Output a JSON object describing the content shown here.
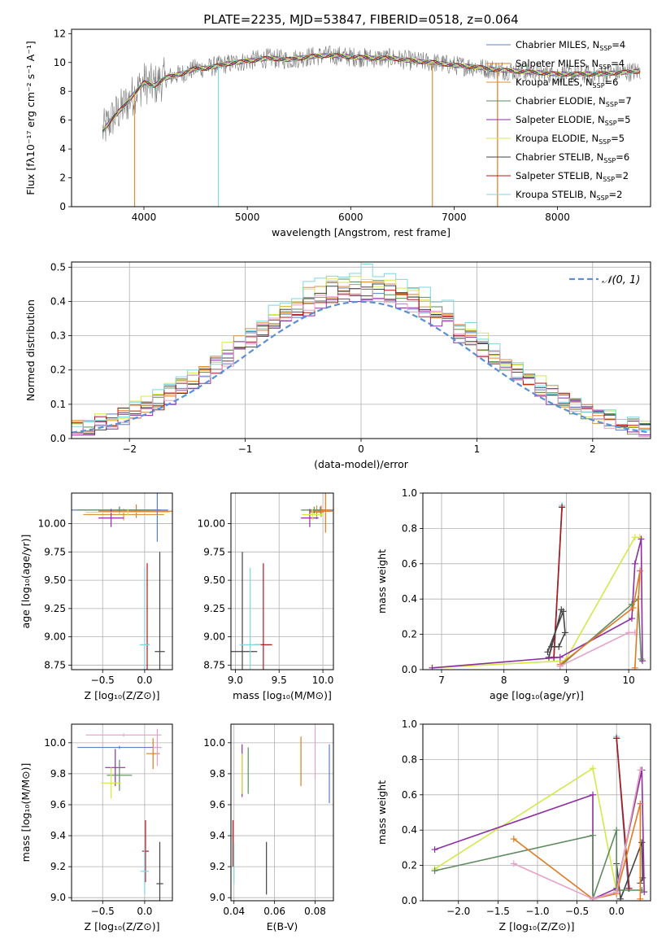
{
  "figure": {
    "title": "PLATE=2235, MJD=53847, FIBERID=0518, z=0.064"
  },
  "colors": {
    "chabrier_miles": "#5b7fc4",
    "salpeter_miles": "#e07a22",
    "kroupa_miles": "#d8913a",
    "chabrier_elodie": "#5f8a5f",
    "salpeter_elodie": "#8e2ea3",
    "kroupa_elodie": "#d4e84a",
    "chabrier_stelib": "#444444",
    "salpeter_stelib": "#b01818",
    "kroupa_stelib": "#7fd6e0"
  },
  "legend_spectrum": [
    {
      "text": "Chabrier MILES, N",
      "sub": "SSP",
      "tail": "=4",
      "color": "#5b7fc4"
    },
    {
      "text": "Salpeter MILES, N",
      "sub": "SSP",
      "tail": "=4",
      "color": "#e07a22"
    },
    {
      "text": "Kroupa MILES, N",
      "sub": "SSP",
      "tail": "=6",
      "color": "#d8913a"
    },
    {
      "text": "Chabrier ELODIE, N",
      "sub": "SSP",
      "tail": "=7",
      "color": "#5f8a5f"
    },
    {
      "text": "Salpeter ELODIE, N",
      "sub": "SSP",
      "tail": "=5",
      "color": "#8e2ea3"
    },
    {
      "text": "Kroupa ELODIE, N",
      "sub": "SSP",
      "tail": "=5",
      "color": "#d4e84a"
    },
    {
      "text": "Chabrier STELIB, N",
      "sub": "SSP",
      "tail": "=6",
      "color": "#444444"
    },
    {
      "text": "Salpeter STELIB, N",
      "sub": "SSP",
      "tail": "=2",
      "color": "#b01818"
    },
    {
      "text": "Kroupa STELIB, N",
      "sub": "SSP",
      "tail": "=2",
      "color": "#7fd6e0"
    }
  ],
  "chart_data": [
    {
      "id": "spectrum",
      "type": "line",
      "xlabel": "wavelength [Angstrom, rest frame]",
      "ylabel": "Flux [fλ10⁻¹⁷ erg cm⁻² s⁻¹ A⁻¹]",
      "xlim": [
        3300,
        8900
      ],
      "ylim": [
        0,
        12.3
      ],
      "xticks": [
        4000,
        5000,
        6000,
        7000,
        8000
      ],
      "yticks": [
        0,
        2,
        4,
        6,
        8,
        10,
        12
      ],
      "data_continuum": {
        "x": [
          3600,
          3700,
          3800,
          3900,
          4000,
          4100,
          4200,
          4300,
          4400,
          4500,
          4600,
          4800,
          5000,
          5200,
          5400,
          5600,
          5800,
          6000,
          6200,
          6400,
          6600,
          6800,
          7000,
          7200,
          7400,
          7600,
          7800,
          8000,
          8200,
          8400,
          8600,
          8800
        ],
        "y": [
          5.2,
          6.2,
          6.9,
          7.8,
          8.6,
          8.4,
          8.9,
          9.1,
          9.3,
          9.6,
          9.6,
          9.9,
          10.1,
          10.3,
          10.2,
          10.4,
          10.5,
          10.4,
          10.3,
          10.3,
          10.1,
          10.0,
          9.8,
          9.7,
          9.5,
          9.4,
          9.3,
          9.2,
          9.2,
          9.2,
          9.3,
          9.4
        ]
      },
      "model_gaps": [
        [
          3910,
          "#d8913a"
        ],
        [
          4720,
          "#7fd6e0"
        ],
        [
          6790,
          "#d8913a"
        ],
        [
          7420,
          "#e07a22"
        ]
      ],
      "legend": "right"
    },
    {
      "id": "residuals",
      "type": "histogram",
      "xlabel": "(data-model)/error",
      "ylabel": "Normed distribution",
      "xlim": [
        -2.5,
        2.5
      ],
      "ylim": [
        0,
        0.515
      ],
      "xticks": [
        -2,
        -1,
        0,
        1,
        2
      ],
      "yticks": [
        0,
        0.1,
        0.2,
        0.3,
        0.4,
        0.5
      ],
      "bin_width": 0.1,
      "series_peak": [
        0.43,
        0.44,
        0.46,
        0.45,
        0.42,
        0.47,
        0.44,
        0.43,
        0.49
      ],
      "normal_label": "𝒩(0, 1)",
      "grid": true,
      "legend": "top-right"
    },
    {
      "id": "age_vs_Z",
      "type": "errorbar",
      "xlabel": "Z [log₁₀(Z/Z⊙)]",
      "ylabel": "age  [log₁₀(age/yr)]",
      "xlim": [
        -0.87,
        0.33
      ],
      "ylim": [
        8.71,
        10.27
      ],
      "xticks": [
        -0.5,
        0.0
      ],
      "yticks": [
        8.75,
        9.0,
        9.25,
        9.5,
        9.75,
        10.0
      ],
      "points": [
        {
          "x": -0.3,
          "xe": 0.58,
          "y": 10.12,
          "ye": 0.03,
          "c": "#5b7fc4"
        },
        {
          "x": -0.1,
          "xe": 0.45,
          "y": 10.11,
          "ye": 0.06,
          "c": "#e07a22"
        },
        {
          "x": -0.25,
          "xe": 0.48,
          "y": 10.08,
          "ye": 0.05,
          "c": "#d8913a"
        },
        {
          "x": -0.3,
          "xe": 0.5,
          "y": 10.12,
          "ye": 0.03,
          "c": "#5f8a5f"
        },
        {
          "x": -0.4,
          "xe": 0.15,
          "y": 10.05,
          "ye": 0.08,
          "c": "#8e2ea3"
        },
        {
          "x": -0.2,
          "xe": 0.5,
          "y": 10.1,
          "ye": 0.03,
          "c": "#d4e84a"
        },
        {
          "x": 0.18,
          "xe": 0.06,
          "y": 8.87,
          "ye": 0.88,
          "c": "#444444"
        },
        {
          "x": 0.03,
          "xe": 0.03,
          "y": 8.93,
          "ye": 0.72,
          "c": "#b01818"
        },
        {
          "x": 0.0,
          "xe": 0.06,
          "y": 8.93,
          "ye": 0.68,
          "c": "#7fd6e0"
        },
        {
          "x": 0.15,
          "xe": 0.05,
          "y": 10.12,
          "ye": 0.28,
          "c": "#5b7fc4"
        }
      ]
    },
    {
      "id": "age_vs_mass",
      "type": "errorbar",
      "xlabel": "mass [log₁₀(M/M⊙)]",
      "ylabel": "",
      "xlim": [
        8.95,
        10.12
      ],
      "ylim": [
        8.71,
        10.27
      ],
      "xticks": [
        9.0,
        9.5,
        10.0
      ],
      "yticks": [
        8.75,
        9.0,
        9.25,
        9.5,
        9.75,
        10.0
      ],
      "points": [
        {
          "x": 9.97,
          "xe": 0.15,
          "y": 10.12,
          "ye": 0.03,
          "c": "#5b7fc4"
        },
        {
          "x": 9.98,
          "xe": 0.13,
          "y": 10.11,
          "ye": 0.05,
          "c": "#e07a22"
        },
        {
          "x": 9.93,
          "xe": 0.08,
          "y": 10.1,
          "ye": 0.06,
          "c": "#d8913a"
        },
        {
          "x": 9.9,
          "xe": 0.15,
          "y": 10.12,
          "ye": 0.03,
          "c": "#5f8a5f"
        },
        {
          "x": 9.85,
          "xe": 0.1,
          "y": 10.05,
          "ye": 0.08,
          "c": "#8e2ea3"
        },
        {
          "x": 9.88,
          "xe": 0.12,
          "y": 10.08,
          "ye": 0.05,
          "c": "#d4e84a"
        },
        {
          "x": 9.08,
          "xe": 0.17,
          "y": 8.87,
          "ye": 0.88,
          "c": "#444444"
        },
        {
          "x": 9.32,
          "xe": 0.1,
          "y": 8.93,
          "ye": 0.72,
          "c": "#b01818"
        },
        {
          "x": 9.17,
          "xe": 0.12,
          "y": 8.93,
          "ye": 0.68,
          "c": "#7fd6e0"
        },
        {
          "x": 10.03,
          "xe": 0.05,
          "y": 10.12,
          "ye": 0.2,
          "c": "#e07a22"
        }
      ]
    },
    {
      "id": "weight_vs_age",
      "type": "line",
      "xlabel": "age  [log₁₀(age/yr)]",
      "ylabel": "mass weight",
      "xlim": [
        6.7,
        10.35
      ],
      "ylim": [
        0,
        1.0
      ],
      "xticks": [
        7,
        8,
        9,
        10
      ],
      "yticks": [
        0.0,
        0.2,
        0.4,
        0.6,
        0.8,
        1.0
      ],
      "series": [
        {
          "c": "#7fd6e0",
          "pts": [
            [
              8.8,
              0.07
            ],
            [
              8.93,
              0.93
            ]
          ]
        },
        {
          "c": "#5b7fc4",
          "pts": [
            [
              8.8,
              0.07
            ],
            [
              8.93,
              0.92
            ]
          ]
        },
        {
          "c": "#b01818",
          "pts": [
            [
              8.8,
              0.07
            ],
            [
              8.93,
              0.92
            ]
          ]
        },
        {
          "c": "#444444",
          "pts": [
            [
              8.7,
              0.1
            ],
            [
              8.95,
              0.33
            ],
            [
              8.98,
              0.21
            ],
            [
              8.88,
              0.13
            ],
            [
              8.76,
              0.13
            ],
            [
              8.72,
              0.07
            ],
            [
              8.92,
              0.34
            ]
          ]
        },
        {
          "c": "#d4e84a",
          "pts": [
            [
              6.85,
              0.01
            ],
            [
              8.98,
              0.05
            ],
            [
              10.1,
              0.75
            ],
            [
              10.18,
              0.75
            ]
          ]
        },
        {
          "c": "#8e2ea3",
          "pts": [
            [
              6.85,
              0.01
            ],
            [
              8.9,
              0.07
            ],
            [
              10.05,
              0.29
            ],
            [
              10.1,
              0.6
            ],
            [
              10.2,
              0.74
            ],
            [
              10.22,
              0.05
            ]
          ]
        },
        {
          "c": "#5f8a5f",
          "pts": [
            [
              8.9,
              0.02
            ],
            [
              10.05,
              0.37
            ],
            [
              10.15,
              0.4
            ],
            [
              10.2,
              0.06
            ]
          ]
        },
        {
          "c": "#e07a22",
          "pts": [
            [
              8.9,
              0.03
            ],
            [
              10.07,
              0.35
            ],
            [
              10.18,
              0.56
            ],
            [
              10.1,
              0.01
            ]
          ]
        },
        {
          "c": "#e6a0c8",
          "pts": [
            [
              8.9,
              0.02
            ],
            [
              10.0,
              0.21
            ],
            [
              10.1,
              0.21
            ]
          ]
        }
      ]
    },
    {
      "id": "mass_vs_Z",
      "type": "errorbar",
      "xlabel": "Z [log₁₀(Z/Z⊙)]",
      "ylabel": "mass [log₁₀(M/M⊙)]",
      "xlim": [
        -0.87,
        0.33
      ],
      "ylim": [
        8.98,
        10.12
      ],
      "xticks": [
        -0.5,
        0.0
      ],
      "yticks": [
        9.0,
        9.2,
        9.4,
        9.6,
        9.8,
        10.0
      ],
      "points": [
        {
          "x": -0.3,
          "xe": 0.5,
          "y": 9.97,
          "ye": 0.01,
          "c": "#5b7fc4"
        },
        {
          "x": -0.25,
          "xe": 0.45,
          "y": 10.05,
          "ye": 0.01,
          "c": "#e6a0c8"
        },
        {
          "x": -0.35,
          "xe": 0.12,
          "y": 9.84,
          "ye": 0.12,
          "c": "#8e2ea3"
        },
        {
          "x": -0.3,
          "xe": 0.15,
          "y": 9.79,
          "ye": 0.1,
          "c": "#5f8a5f"
        },
        {
          "x": -0.4,
          "xe": 0.12,
          "y": 9.74,
          "ye": 0.1,
          "c": "#d4e84a"
        },
        {
          "x": 0.1,
          "xe": 0.08,
          "y": 9.93,
          "ye": 0.1,
          "c": "#e07a22"
        },
        {
          "x": 0.18,
          "xe": 0.04,
          "y": 9.09,
          "ye": 0.27,
          "c": "#444444"
        },
        {
          "x": 0.01,
          "xe": 0.04,
          "y": 9.3,
          "ye": 0.2,
          "c": "#b01818"
        },
        {
          "x": 0.0,
          "xe": 0.05,
          "y": 9.17,
          "ye": 0.15,
          "c": "#7fd6e0"
        },
        {
          "x": 0.15,
          "xe": 0.05,
          "y": 9.97,
          "ye": 0.12,
          "c": "#e6a0c8"
        }
      ]
    },
    {
      "id": "mass_vs_ebv",
      "type": "errorbar",
      "xlabel": "E(B-V)",
      "ylabel": "",
      "xlim": [
        0.0385,
        0.089
      ],
      "ylim": [
        8.98,
        10.12
      ],
      "xticks": [
        0.04,
        0.06,
        0.08
      ],
      "yticks": [
        9.0,
        9.2,
        9.4,
        9.6,
        9.8,
        10.0
      ],
      "points": [
        {
          "x": 0.087,
          "xe": 0,
          "y": 9.8,
          "ye": 0.19,
          "c": "#5b7fc4"
        },
        {
          "x": 0.073,
          "xe": 0,
          "y": 9.88,
          "ye": 0.16,
          "c": "#e07a22"
        },
        {
          "x": 0.08,
          "xe": 0,
          "y": 9.93,
          "ye": 0.17,
          "c": "#e6a0c8"
        },
        {
          "x": 0.047,
          "xe": 0,
          "y": 9.82,
          "ye": 0.15,
          "c": "#5f8a5f"
        },
        {
          "x": 0.044,
          "xe": 0,
          "y": 9.82,
          "ye": 0.17,
          "c": "#8e2ea3"
        },
        {
          "x": 0.044,
          "xe": 0,
          "y": 9.8,
          "ye": 0.13,
          "c": "#d4e84a"
        },
        {
          "x": 0.056,
          "xe": 0,
          "y": 9.19,
          "ye": 0.17,
          "c": "#444444"
        },
        {
          "x": 0.0395,
          "xe": 0,
          "y": 9.35,
          "ye": 0.15,
          "c": "#b01818"
        },
        {
          "x": 0.04,
          "xe": 0,
          "y": 9.22,
          "ye": 0.13,
          "c": "#7fd6e0"
        }
      ]
    },
    {
      "id": "weight_vs_Z",
      "type": "line",
      "xlabel": "Z [log₁₀(Z/Z⊙)]",
      "ylabel": "mass weight",
      "xlim": [
        -2.45,
        0.43
      ],
      "ylim": [
        0,
        1.0
      ],
      "xticks": [
        -2.0,
        -1.5,
        -1.0,
        -0.5,
        0.0
      ],
      "yticks": [
        0.0,
        0.2,
        0.4,
        0.6,
        0.8,
        1.0
      ],
      "series": [
        {
          "c": "#7fd6e0",
          "pts": [
            [
              0.0,
              0.93
            ],
            [
              0.15,
              0.07
            ]
          ]
        },
        {
          "c": "#5b7fc4",
          "pts": [
            [
              0.0,
              0.92
            ],
            [
              0.15,
              0.07
            ]
          ]
        },
        {
          "c": "#b01818",
          "pts": [
            [
              0.0,
              0.92
            ],
            [
              0.16,
              0.07
            ]
          ]
        },
        {
          "c": "#444444",
          "pts": [
            [
              0.0,
              0.21
            ],
            [
              0.05,
              0.01
            ],
            [
              0.32,
              0.33
            ],
            [
              0.33,
              0.13
            ],
            [
              0.3,
              0.1
            ]
          ]
        },
        {
          "c": "#d4e84a",
          "pts": [
            [
              -2.3,
              0.18
            ],
            [
              -0.3,
              0.75
            ],
            [
              0.0,
              0.05
            ],
            [
              0.32,
              0.74
            ]
          ]
        },
        {
          "c": "#8e2ea3",
          "pts": [
            [
              -2.3,
              0.29
            ],
            [
              -0.3,
              0.6
            ],
            [
              -0.3,
              0.01
            ],
            [
              0.0,
              0.07
            ],
            [
              0.32,
              0.74
            ],
            [
              0.35,
              0.05
            ]
          ]
        },
        {
          "c": "#5f8a5f",
          "pts": [
            [
              -2.3,
              0.17
            ],
            [
              -0.3,
              0.37
            ],
            [
              -0.3,
              0.01
            ],
            [
              0.0,
              0.4
            ],
            [
              0.0,
              0.06
            ],
            [
              0.32,
              0.06
            ]
          ]
        },
        {
          "c": "#e07a22",
          "pts": [
            [
              -1.3,
              0.35
            ],
            [
              -0.3,
              0.01
            ],
            [
              0.0,
              0.04
            ],
            [
              0.3,
              0.55
            ],
            [
              0.3,
              0.01
            ]
          ]
        },
        {
          "c": "#e6a0c8",
          "pts": [
            [
              -1.3,
              0.21
            ],
            [
              -0.3,
              0.01
            ],
            [
              0.0,
              0.05
            ],
            [
              0.3,
              0.74
            ]
          ]
        }
      ]
    }
  ]
}
